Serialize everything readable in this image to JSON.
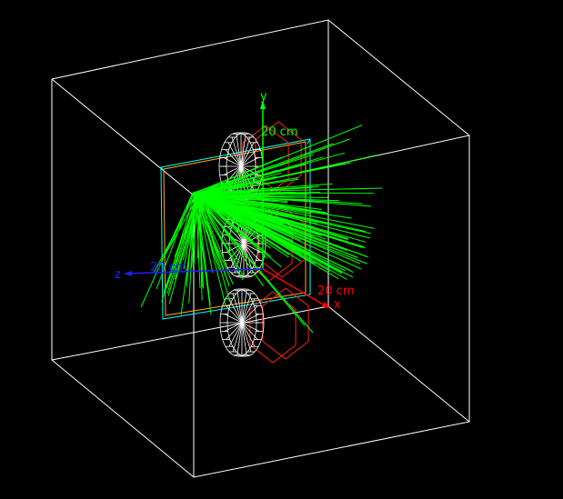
{
  "colors": {
    "background": "#000000",
    "world_box": "#ffffff",
    "detector_plane": "#00ffff",
    "detector_plane_inner": "#ffb000",
    "disks": "#ffffff",
    "hexagons": "#ff2020",
    "tracks": "#00ff00",
    "y_axis": "#00ff00",
    "x_axis": "#ff0000",
    "z_axis": "#2020ff"
  },
  "axes": {
    "y": {
      "name": "y",
      "scale_label": "20 cm"
    },
    "x": {
      "name": "x",
      "scale_label": "20 cm"
    },
    "z": {
      "name": "z",
      "scale_label": "20 cm"
    }
  },
  "icons": [
    "axes-gizmo-icon"
  ]
}
